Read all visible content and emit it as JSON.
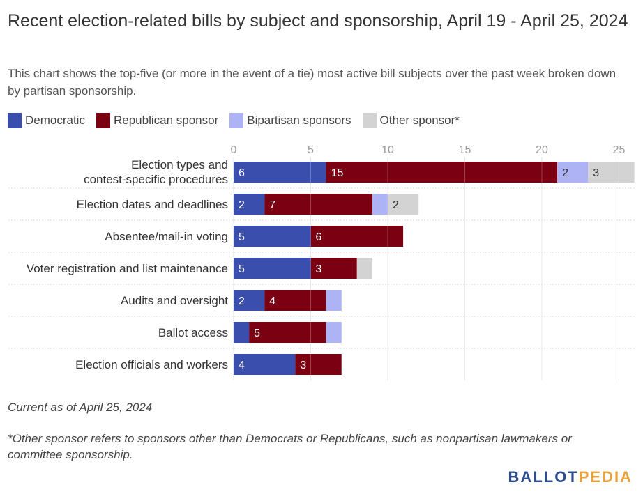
{
  "title": "Recent election-related bills by subject and sponsorship, April 19 - April 25, 2024",
  "subtitle": "This chart shows the top-five (or more in the event of a tie) most active bill subjects over the past week broken down by partisan sponsorship.",
  "legend": [
    {
      "label": "Democratic",
      "color": "#3a4fad"
    },
    {
      "label": "Republican sponsor",
      "color": "#7a0012"
    },
    {
      "label": "Bipartisan sponsors",
      "color": "#aeb3f5"
    },
    {
      "label": "Other sponsor*",
      "color": "#d3d3d3"
    }
  ],
  "chart_data": {
    "type": "bar",
    "orientation": "horizontal",
    "stacked": true,
    "categories": [
      "Election types and contest-specific procedures",
      "Election dates and deadlines",
      "Absentee/mail-in voting",
      "Voter registration and list maintenance",
      "Audits and oversight",
      "Ballot access",
      "Election officials and workers"
    ],
    "series": [
      {
        "name": "Democratic",
        "color": "#3a4fad",
        "values": [
          6,
          2,
          5,
          5,
          2,
          1,
          4
        ],
        "label_color": "#ffffff"
      },
      {
        "name": "Republican sponsor",
        "color": "#7a0012",
        "values": [
          15,
          7,
          6,
          3,
          4,
          5,
          3
        ],
        "label_color": "#ffffff"
      },
      {
        "name": "Bipartisan sponsors",
        "color": "#aeb3f5",
        "values": [
          2,
          1,
          0,
          0,
          1,
          1,
          0
        ],
        "label_color": "#333333"
      },
      {
        "name": "Other sponsor*",
        "color": "#d3d3d3",
        "values": [
          3,
          2,
          0,
          1,
          0,
          0,
          0
        ],
        "label_color": "#333333"
      }
    ],
    "shown_labels": [
      [
        "6",
        "15",
        "2",
        "3"
      ],
      [
        "2",
        "7",
        "",
        "2"
      ],
      [
        "5",
        "6",
        "",
        ""
      ],
      [
        "5",
        "3",
        "",
        ""
      ],
      [
        "2",
        "4",
        "",
        ""
      ],
      [
        "",
        "5",
        "",
        ""
      ],
      [
        "4",
        "3",
        "",
        ""
      ]
    ],
    "xlim": [
      0,
      26
    ],
    "xticks": [
      0,
      5,
      10,
      15,
      20,
      25
    ],
    "axis_position": "top",
    "grid": true
  },
  "footnotes": {
    "current": "Current as of April 25, 2024",
    "other": "*Other sponsor refers to sponsors other than Democrats or Republicans, such as nonpartisan lawmakers or committee sponsorship."
  },
  "logo": {
    "part1": "BALLOT",
    "part2": "PEDIA"
  }
}
